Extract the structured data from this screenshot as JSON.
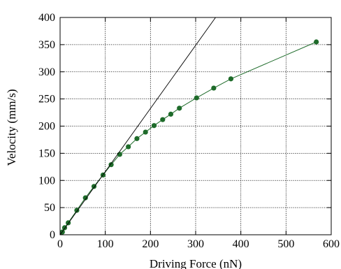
{
  "chart_data": {
    "type": "line",
    "xlabel": "Driving Force (nN)",
    "ylabel": "Velocity (mm/s)",
    "xlim": [
      0,
      600
    ],
    "ylim": [
      0,
      400
    ],
    "xticks": [
      0,
      100,
      200,
      300,
      400,
      500,
      600
    ],
    "yticks": [
      0,
      50,
      100,
      150,
      200,
      250,
      300,
      350,
      400
    ],
    "grid": true,
    "series": [
      {
        "style": "line-with-markers",
        "color": "#1e6b2a",
        "x": [
          0,
          5,
          10,
          18,
          37,
          56,
          75,
          95,
          113,
          132,
          151,
          170,
          189,
          208,
          227,
          245,
          264,
          302,
          340,
          378,
          567
        ],
        "y": [
          0,
          5,
          13,
          22,
          45,
          68,
          89,
          110,
          129,
          148,
          162,
          177,
          189,
          201,
          212,
          222,
          233,
          252,
          270,
          287,
          355
        ]
      },
      {
        "style": "line",
        "color": "#000000",
        "x": [
          0,
          344
        ],
        "y": [
          0,
          400
        ]
      }
    ]
  }
}
